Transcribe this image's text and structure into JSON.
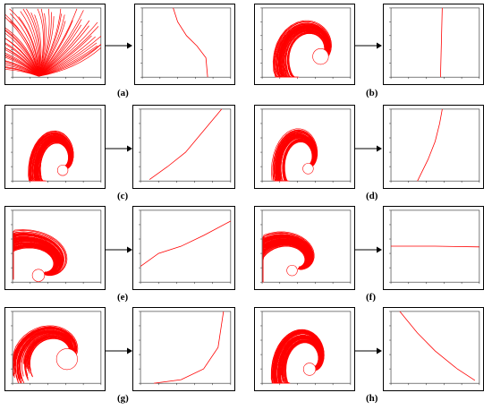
{
  "figure": {
    "panels": [
      {
        "id": "a",
        "label": "(a)",
        "left_shape": "fan",
        "right_curve": "a"
      },
      {
        "id": "b",
        "label": "(b)",
        "left_shape": "swirl",
        "right_curve": "b"
      },
      {
        "id": "c",
        "label": "(c)",
        "left_shape": "swirl-small",
        "right_curve": "c"
      },
      {
        "id": "d",
        "label": "(d)",
        "left_shape": "swirl-small",
        "right_curve": "d"
      },
      {
        "id": "e",
        "label": "(e)",
        "left_shape": "swirl-wide",
        "right_curve": "e"
      },
      {
        "id": "f",
        "label": "(f)",
        "left_shape": "swirl-wide",
        "right_curve": "f"
      },
      {
        "id": "g",
        "label": "(g)",
        "left_shape": "swirl-open",
        "right_curve": "g"
      },
      {
        "id": "h",
        "label": "(h)",
        "left_shape": "swirl",
        "right_curve": "h"
      }
    ],
    "stroke_color": "#ff0000"
  }
}
